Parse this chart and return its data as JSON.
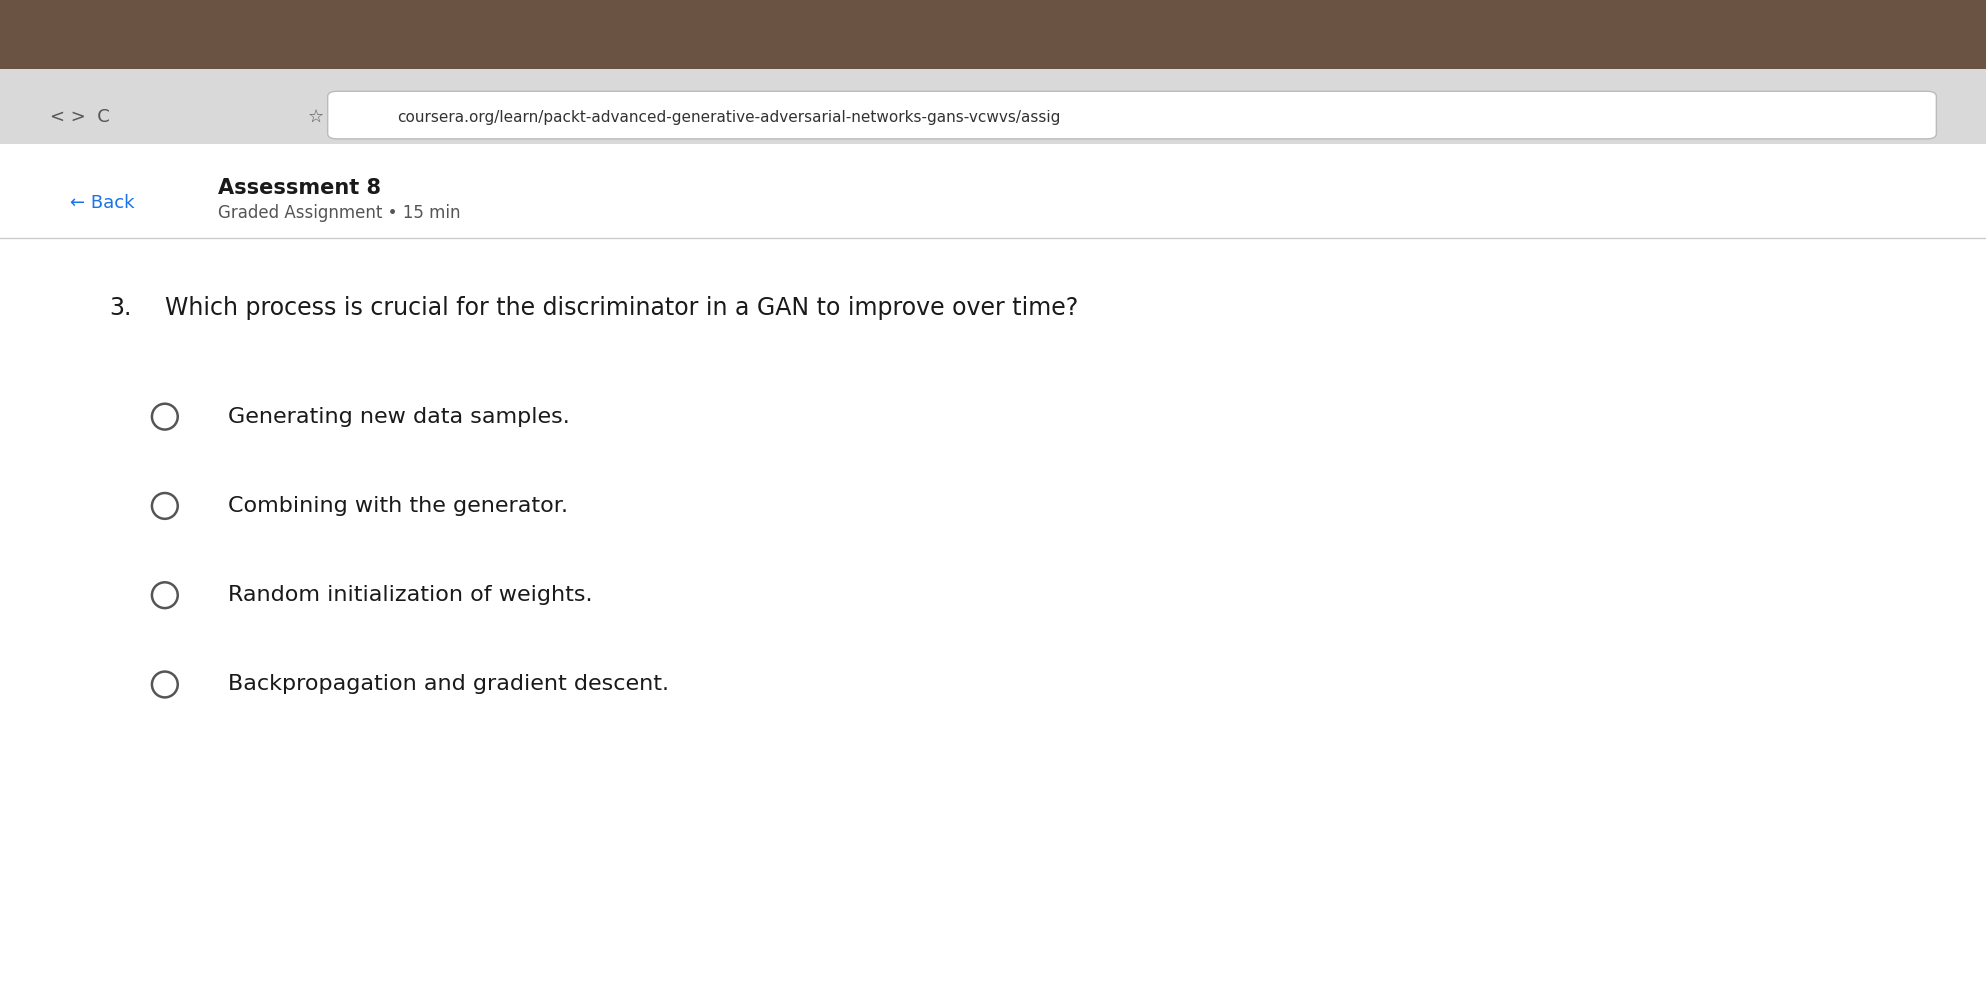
{
  "background_color": "#f1f1f1",
  "browser_bar_color": "#ffffff",
  "browser_toolbar_color": "#e8e8e8",
  "url_text": "coursera.org/learn/packt-advanced-generative-adversarial-networks-gans-vcwvs/assig",
  "back_text": "← Back",
  "back_color": "#1a73e8",
  "title_text": "Assessment 8",
  "subtitle_text": "Graded Assignment • 15 min",
  "question_number": "3.",
  "question_text": "Which process is crucial for the discriminator in a GAN to improve over time?",
  "options": [
    "Generating new data samples.",
    "Combining with the generator.",
    "Random initialization of weights.",
    "Backpropagation and gradient descent."
  ],
  "text_color": "#1a1a1a",
  "option_text_color": "#1a1a1a",
  "divider_color": "#cccccc",
  "circle_color": "#555555",
  "title_fontsize": 15,
  "subtitle_fontsize": 12,
  "question_fontsize": 17,
  "option_fontsize": 16,
  "url_fontsize": 11
}
